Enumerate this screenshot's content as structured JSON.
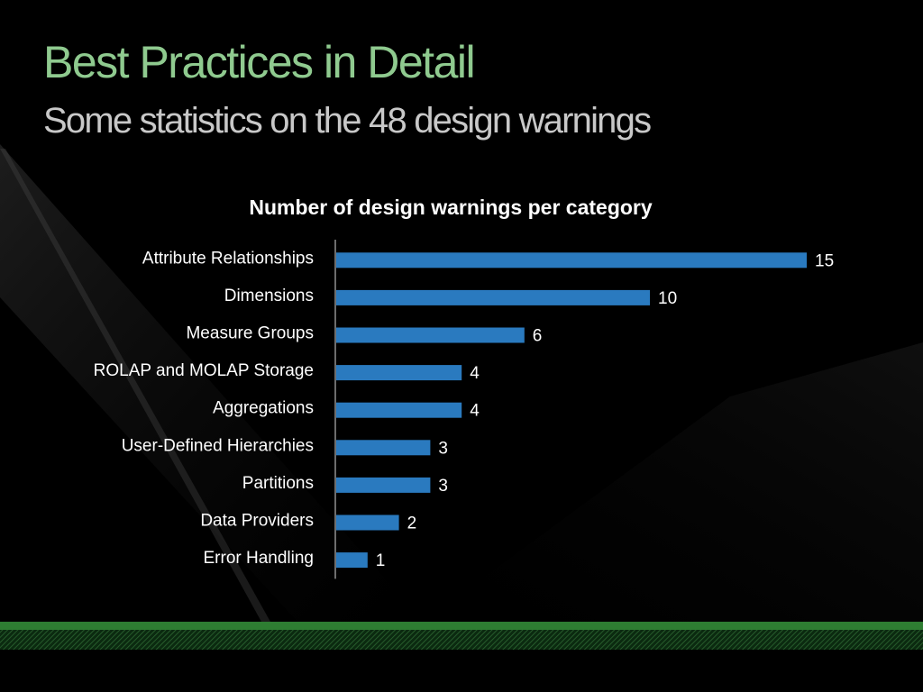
{
  "colors": {
    "title": "#8fca8f",
    "subtitle": "#c8c8c8",
    "bar": "#2a7abf",
    "label": "#ffffff",
    "footer_green": "#2e7d32"
  },
  "slide": {
    "title": "Best Practices in Detail",
    "subtitle": "Some statistics on the 48 design warnings"
  },
  "chart_data": {
    "type": "bar",
    "orientation": "horizontal",
    "title": "Number of design warnings per category",
    "categories": [
      "Attribute Relationships",
      "Dimensions",
      "Measure Groups",
      "ROLAP and MOLAP Storage",
      "Aggregations",
      "User-Defined Hierarchies",
      "Partitions",
      "Data Providers",
      "Error Handling"
    ],
    "values": [
      15,
      10,
      6,
      4,
      4,
      3,
      3,
      2,
      1
    ],
    "xlim": [
      0,
      15
    ],
    "grid": false,
    "legend": "none",
    "data_labels": true
  }
}
